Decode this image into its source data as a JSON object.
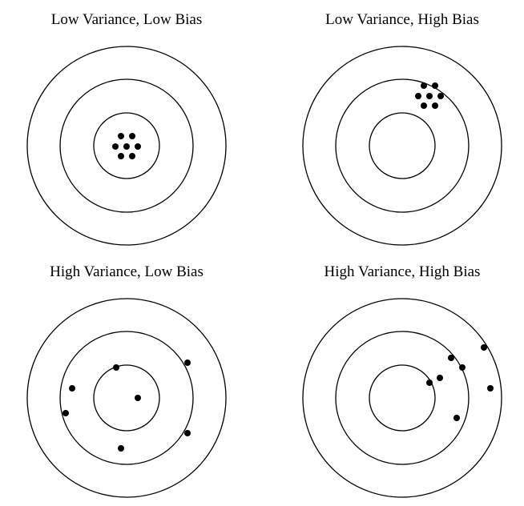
{
  "panels": [
    {
      "title": "Low Variance, Low Bias"
    },
    {
      "title": "Low Variance, High Bias"
    },
    {
      "title": "High Variance, Low Bias"
    },
    {
      "title": "High Variance, High Bias"
    }
  ]
}
